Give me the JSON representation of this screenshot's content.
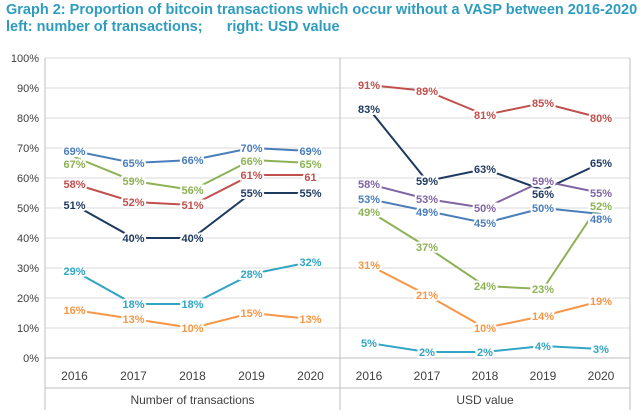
{
  "chart_data": {
    "type": "line",
    "title": "Graph 2: Proportion of bitcoin transactions which occur without a VASP between 2016-2020",
    "subtitle_left": "left: number of transactions;",
    "subtitle_right": "right: USD value",
    "ylim": [
      0,
      100
    ],
    "yticks": [
      "0%",
      "10%",
      "20%",
      "30%",
      "40%",
      "50%",
      "60%",
      "70%",
      "80%",
      "90%",
      "100%"
    ],
    "grid": true,
    "panels": [
      {
        "label": "Number of transactions",
        "categories": [
          "2016",
          "2017",
          "2018",
          "2019",
          "2020"
        ],
        "series": [
          {
            "color": "#4a7ebb",
            "values": [
              69,
              65,
              66,
              70,
              69
            ],
            "labels": [
              "69%",
              "65%",
              "66%",
              "70%",
              "69%"
            ]
          },
          {
            "color": "#8db255",
            "values": [
              67,
              59,
              56,
              66,
              65
            ],
            "labels": [
              "67%",
              "59%",
              "56%",
              "66%",
              "65%"
            ]
          },
          {
            "color": "#c0504d",
            "values": [
              58,
              52,
              51,
              61,
              61
            ],
            "labels": [
              "58%",
              "52%",
              "51%",
              "61%",
              "61"
            ]
          },
          {
            "color": "#1f3a5f",
            "values": [
              51,
              40,
              40,
              55,
              55
            ],
            "labels": [
              "51%",
              "40%",
              "40%",
              "55%",
              "55%"
            ]
          },
          {
            "color": "#31a5c4",
            "values": [
              29,
              18,
              18,
              28,
              32
            ],
            "labels": [
              "29%",
              "18%",
              "18%",
              "28%",
              "32%"
            ]
          },
          {
            "color": "#f79646",
            "values": [
              16,
              13,
              10,
              15,
              13
            ],
            "labels": [
              "16%",
              "13%",
              "10%",
              "15%",
              "13%"
            ]
          }
        ]
      },
      {
        "label": "USD value",
        "categories": [
          "2016",
          "2017",
          "2018",
          "2019",
          "2020"
        ],
        "series": [
          {
            "color": "#c0504d",
            "values": [
              91,
              89,
              81,
              85,
              80
            ],
            "labels": [
              "91%",
              "89%",
              "81%",
              "85%",
              "80%"
            ]
          },
          {
            "color": "#1f3a5f",
            "values": [
              83,
              59,
              63,
              56,
              65
            ],
            "labels": [
              "83%",
              "59%",
              "63%",
              "56%",
              "65%"
            ]
          },
          {
            "color": "#8064a2",
            "values": [
              58,
              53,
              50,
              59,
              55
            ],
            "labels": [
              "58%",
              "53%",
              "50%",
              "59%",
              "55%"
            ]
          },
          {
            "color": "#4a7ebb",
            "values": [
              53,
              49,
              45,
              50,
              48
            ],
            "labels": [
              "53%",
              "49%",
              "45%",
              "50%",
              "48%"
            ]
          },
          {
            "color": "#8db255",
            "values": [
              49,
              37,
              24,
              23,
              52
            ],
            "labels": [
              "49%",
              "37%",
              "24%",
              "23%",
              "52%"
            ]
          },
          {
            "color": "#f79646",
            "values": [
              31,
              21,
              10,
              14,
              19
            ],
            "labels": [
              "31%",
              "21%",
              "10%",
              "14%",
              "19%"
            ]
          },
          {
            "color": "#31a5c4",
            "values": [
              5,
              2,
              2,
              4,
              3
            ],
            "labels": [
              "5%",
              "2%",
              "2%",
              "4%",
              "3%"
            ]
          }
        ]
      }
    ]
  }
}
